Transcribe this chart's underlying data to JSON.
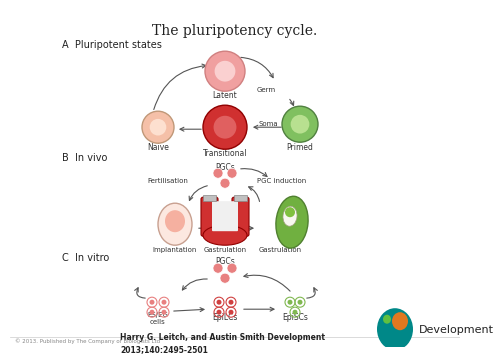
{
  "title": "The pluripotency cycle.",
  "bg_color": "#ffffff",
  "section_A_label": "A  Pluripotent states",
  "section_B_label": "B  In vivo",
  "section_C_label": "C  In vitro",
  "citation_line1": "Harry G. Leitch, and Austin Smith Development",
  "citation_line2": "2013;140:2495-2501",
  "copyright": "© 2013. Published by The Company of Biologists Ltd",
  "arrow_color": "#555555",
  "pink_light": "#f0a0a0",
  "pink_inner": "#fad0d0",
  "pink_dark": "#d03030",
  "salmon": "#f5c0a8",
  "salmon_inner": "#fde0d0",
  "green_cell": "#80c060",
  "green_inner": "#b8e090",
  "red_cell_inner": "#e06060",
  "cluster_pink": "#e88080",
  "cluster_red": "#d04040",
  "cluster_green": "#80b850"
}
